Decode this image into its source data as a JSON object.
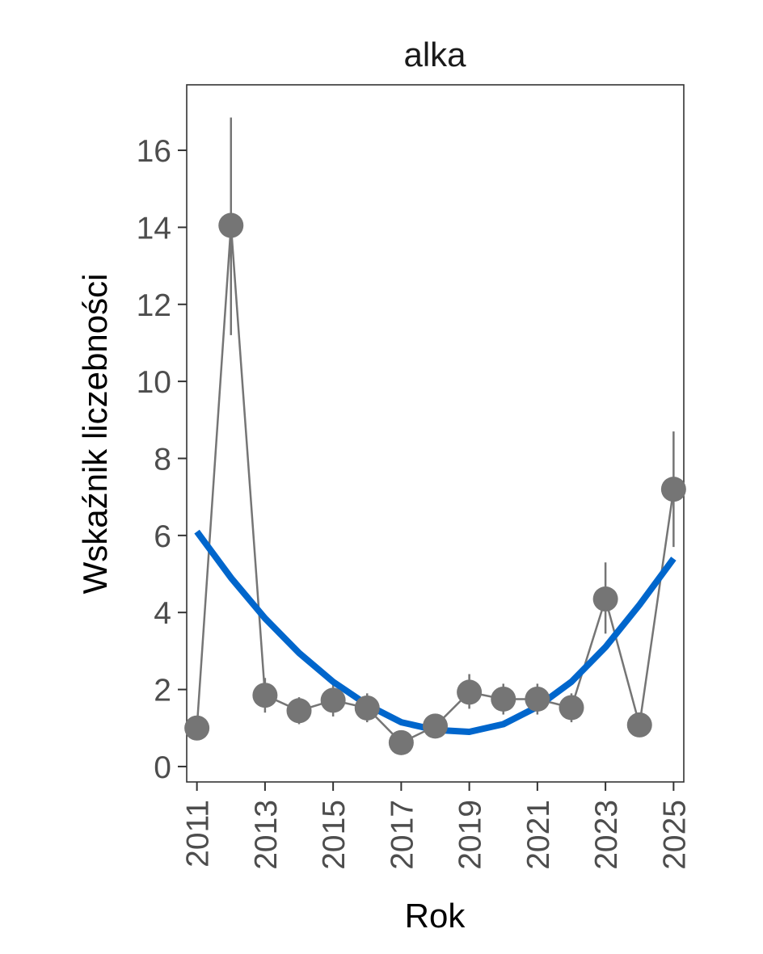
{
  "chart_data": {
    "type": "line",
    "title": "alka",
    "xlabel": "Rok",
    "ylabel": "Wskaźnik liczebności",
    "xlim": [
      2010.7,
      2025.3
    ],
    "ylim": [
      -0.4,
      17.7
    ],
    "x_ticks": [
      2011,
      2013,
      2015,
      2017,
      2019,
      2021,
      2023,
      2025
    ],
    "x_tick_labels": [
      "2011",
      "2013",
      "2015",
      "2017",
      "2019",
      "2021",
      "2023",
      "2025"
    ],
    "y_ticks": [
      0,
      2,
      4,
      6,
      8,
      10,
      12,
      14,
      16
    ],
    "y_tick_labels": [
      "0",
      "2",
      "4",
      "6",
      "8",
      "10",
      "12",
      "14",
      "16"
    ],
    "grid": false,
    "series": [
      {
        "kind": "points_with_error_bars",
        "color": "#757575",
        "x": [
          2011,
          2012,
          2013,
          2014,
          2015,
          2016,
          2017,
          2018,
          2019,
          2020,
          2021,
          2022,
          2023,
          2024,
          2025
        ],
        "y": [
          1.0,
          14.05,
          1.85,
          1.45,
          1.72,
          1.52,
          0.62,
          1.05,
          1.93,
          1.75,
          1.75,
          1.53,
          4.35,
          1.08,
          7.2
        ],
        "lower": [
          1.0,
          11.2,
          1.4,
          1.1,
          1.3,
          1.15,
          0.55,
          0.9,
          1.5,
          1.35,
          1.35,
          1.15,
          3.45,
          1.0,
          5.7
        ],
        "upper": [
          1.0,
          16.85,
          2.3,
          1.8,
          2.15,
          1.9,
          0.7,
          1.2,
          2.4,
          2.15,
          2.15,
          1.9,
          5.3,
          1.15,
          8.7
        ]
      },
      {
        "kind": "trend",
        "color": "#0066cc",
        "x": [
          2011,
          2012,
          2013,
          2014,
          2015,
          2016,
          2017,
          2018,
          2019,
          2020,
          2021,
          2022,
          2023,
          2024,
          2025
        ],
        "y": [
          6.1,
          4.9,
          3.85,
          2.95,
          2.2,
          1.6,
          1.15,
          0.95,
          0.9,
          1.1,
          1.55,
          2.2,
          3.1,
          4.2,
          5.4
        ]
      }
    ]
  }
}
